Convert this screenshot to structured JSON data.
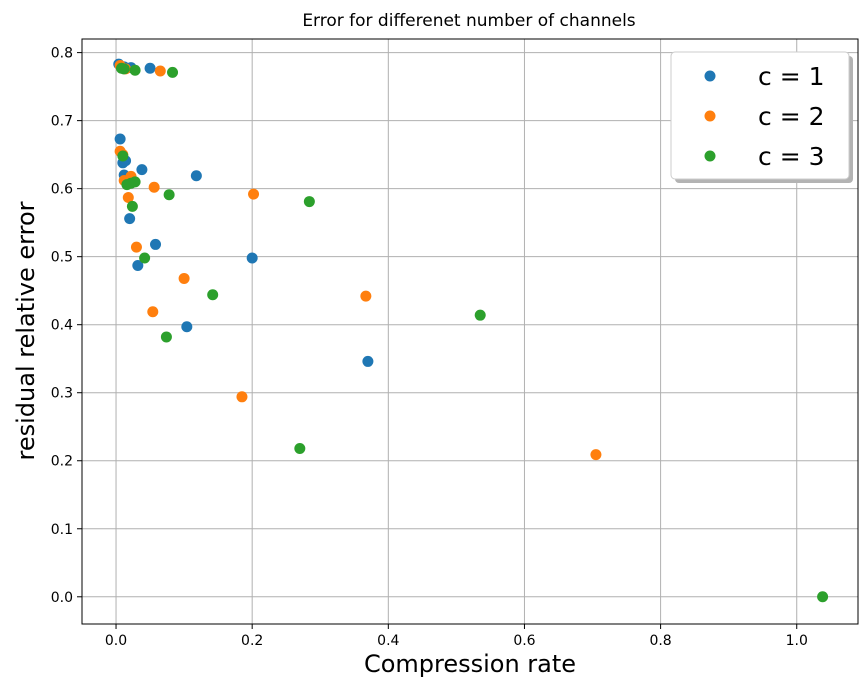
{
  "chart_data": {
    "type": "scatter",
    "title": "Error for differenet number of channels",
    "xlabel": "Compression rate",
    "ylabel": "residual relative error",
    "xlim": [
      -0.05,
      1.09
    ],
    "ylim": [
      -0.04,
      0.82
    ],
    "xticks": [
      0.0,
      0.2,
      0.4,
      0.6,
      0.8,
      1.0
    ],
    "xtick_labels": [
      "0.0",
      "0.2",
      "0.4",
      "0.6",
      "0.8",
      "1.0"
    ],
    "yticks": [
      0.0,
      0.1,
      0.2,
      0.3,
      0.4,
      0.5,
      0.6,
      0.7,
      0.8
    ],
    "ytick_labels": [
      "0.0",
      "0.1",
      "0.2",
      "0.3",
      "0.4",
      "0.5",
      "0.6",
      "0.7",
      "0.8"
    ],
    "grid": true,
    "legend_position": "top-right",
    "series": [
      {
        "name": "c = 1",
        "color": "#1f77b4",
        "points": [
          [
            0.004,
            0.783
          ],
          [
            0.012,
            0.779
          ],
          [
            0.022,
            0.778
          ],
          [
            0.05,
            0.777
          ],
          [
            0.006,
            0.673
          ],
          [
            0.01,
            0.638
          ],
          [
            0.014,
            0.641
          ],
          [
            0.012,
            0.62
          ],
          [
            0.038,
            0.628
          ],
          [
            0.02,
            0.556
          ],
          [
            0.118,
            0.619
          ],
          [
            0.058,
            0.518
          ],
          [
            0.032,
            0.487
          ],
          [
            0.2,
            0.498
          ],
          [
            0.104,
            0.397
          ],
          [
            0.37,
            0.346
          ]
        ]
      },
      {
        "name": "c = 2",
        "color": "#ff7f0e",
        "points": [
          [
            0.006,
            0.781
          ],
          [
            0.014,
            0.776
          ],
          [
            0.065,
            0.773
          ],
          [
            0.006,
            0.655
          ],
          [
            0.01,
            0.65
          ],
          [
            0.012,
            0.612
          ],
          [
            0.022,
            0.618
          ],
          [
            0.018,
            0.587
          ],
          [
            0.056,
            0.602
          ],
          [
            0.202,
            0.592
          ],
          [
            0.03,
            0.514
          ],
          [
            0.1,
            0.468
          ],
          [
            0.054,
            0.419
          ],
          [
            0.367,
            0.442
          ],
          [
            0.185,
            0.294
          ],
          [
            0.705,
            0.209
          ]
        ]
      },
      {
        "name": "c = 3",
        "color": "#2ca02c",
        "points": [
          [
            0.008,
            0.777
          ],
          [
            0.012,
            0.776
          ],
          [
            0.028,
            0.774
          ],
          [
            0.083,
            0.771
          ],
          [
            0.01,
            0.648
          ],
          [
            0.016,
            0.606
          ],
          [
            0.022,
            0.608
          ],
          [
            0.028,
            0.61
          ],
          [
            0.078,
            0.591
          ],
          [
            0.024,
            0.574
          ],
          [
            0.284,
            0.581
          ],
          [
            0.042,
            0.498
          ],
          [
            0.142,
            0.444
          ],
          [
            0.535,
            0.414
          ],
          [
            0.074,
            0.382
          ],
          [
            0.27,
            0.218
          ],
          [
            1.038,
            0.0
          ]
        ]
      }
    ]
  }
}
